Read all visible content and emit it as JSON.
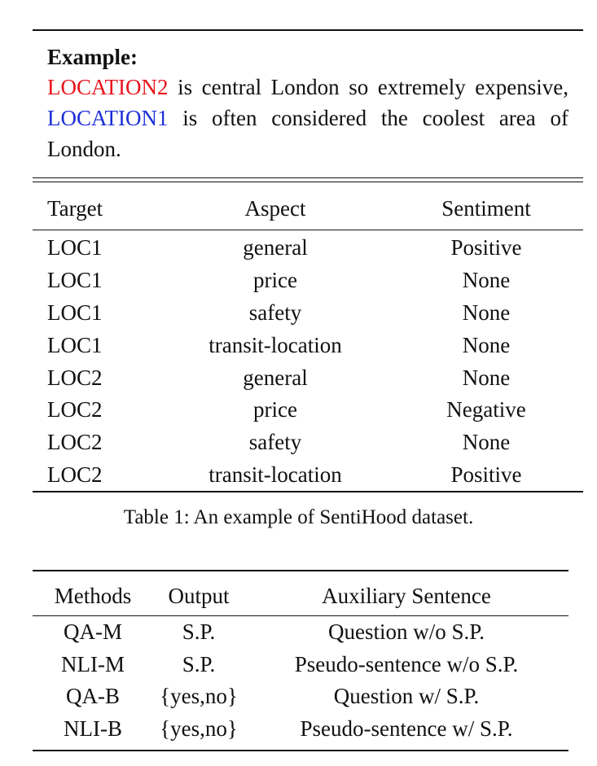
{
  "example": {
    "label": "Example:",
    "loc2_token": "LOCATION2",
    "text_part1": " is central London so extremely ex­pensive, ",
    "loc1_token": "LOCATION1",
    "text_part2": " is often considered the coolest area of London.",
    "colors": {
      "loc2": "#e8141c",
      "loc1": "#1c2fd8"
    }
  },
  "table1": {
    "headers": [
      "Target",
      "Aspect",
      "Sentiment"
    ],
    "rows": [
      [
        "LOC1",
        "general",
        "Positive"
      ],
      [
        "LOC1",
        "price",
        "None"
      ],
      [
        "LOC1",
        "safety",
        "None"
      ],
      [
        "LOC1",
        "transit-location",
        "None"
      ],
      [
        "LOC2",
        "general",
        "None"
      ],
      [
        "LOC2",
        "price",
        "Negative"
      ],
      [
        "LOC2",
        "safety",
        "None"
      ],
      [
        "LOC2",
        "transit-location",
        "Positive"
      ]
    ],
    "caption": "Table 1:  An example of SentiHood dataset."
  },
  "table2": {
    "headers": [
      "Methods",
      "Output",
      "Auxiliary Sentence"
    ],
    "rows": [
      [
        "QA-M",
        "S.P.",
        "Question w/o S.P."
      ],
      [
        "NLI-M",
        "S.P.",
        "Pseudo-sentence w/o S.P."
      ],
      [
        "QA-B",
        "{yes,no}",
        "Question w/ S.P."
      ],
      [
        "NLI-B",
        "{yes,no}",
        "Pseudo-sentence w/ S.P."
      ]
    ]
  }
}
